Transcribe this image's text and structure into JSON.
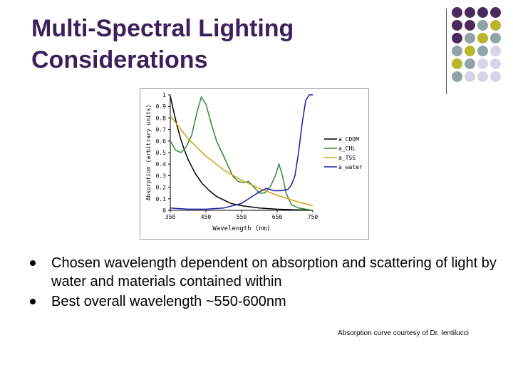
{
  "slide": {
    "title_lines": [
      "Multi-Spectral Lighting",
      "Considerations"
    ],
    "bullets": [
      "Chosen wavelength dependent on absorption and scattering of light by water and materials contained within",
      "Best overall wavelength ~550-600nm"
    ],
    "credit": "Absorption curve courtesy of Dr. Ientilucci",
    "decor_dot_colors": [
      "#4a2a5c",
      "#8fa3a8",
      "#b8b52e",
      "#d6d4e6"
    ]
  },
  "chart_data": {
    "type": "line",
    "xlabel": "Wavelength (nm)",
    "ylabel": "Absorption (arbitrary units)",
    "xlim": [
      350,
      750
    ],
    "ylim": [
      0,
      1
    ],
    "x_ticks": [
      "350",
      "450",
      "550",
      "650",
      "750"
    ],
    "y_ticks": [
      "0",
      "0.1",
      "0.2",
      "0.3",
      "0.4",
      "0.5",
      "0.6",
      "0.7",
      "0.8",
      "0.9",
      "1"
    ],
    "legend_position": "right",
    "series": [
      {
        "name": "a_CDOM",
        "color": "#000000",
        "x": [
          350,
          360,
          370,
          380,
          390,
          400,
          420,
          440,
          460,
          480,
          500,
          520,
          550,
          600,
          650,
          700,
          750
        ],
        "y": [
          0.99,
          0.85,
          0.72,
          0.61,
          0.52,
          0.44,
          0.32,
          0.23,
          0.17,
          0.12,
          0.09,
          0.06,
          0.04,
          0.02,
          0.01,
          0.005,
          0.0
        ]
      },
      {
        "name": "a_CHL",
        "color": "#2e8b2e",
        "x": [
          350,
          365,
          380,
          395,
          410,
          425,
          437,
          450,
          465,
          480,
          495,
          510,
          525,
          540,
          555,
          570,
          585,
          600,
          615,
          630,
          645,
          655,
          665,
          675,
          690,
          710,
          730,
          750
        ],
        "y": [
          0.6,
          0.52,
          0.5,
          0.55,
          0.65,
          0.85,
          0.98,
          0.92,
          0.75,
          0.6,
          0.5,
          0.4,
          0.3,
          0.25,
          0.24,
          0.25,
          0.2,
          0.15,
          0.15,
          0.2,
          0.3,
          0.4,
          0.3,
          0.15,
          0.05,
          0.02,
          0.01,
          0.0
        ]
      },
      {
        "name": "a_TSS",
        "color": "#d4a017",
        "x": [
          350,
          400,
          450,
          500,
          550,
          600,
          650,
          700,
          750
        ],
        "y": [
          0.82,
          0.62,
          0.47,
          0.35,
          0.26,
          0.19,
          0.13,
          0.08,
          0.04
        ]
      },
      {
        "name": "a_water",
        "color": "#1a1aa8",
        "x": [
          350,
          400,
          450,
          500,
          550,
          570,
          590,
          600,
          620,
          640,
          660,
          680,
          690,
          700,
          710,
          720,
          730,
          740,
          750
        ],
        "y": [
          0.02,
          0.01,
          0.01,
          0.02,
          0.06,
          0.1,
          0.14,
          0.16,
          0.19,
          0.17,
          0.17,
          0.18,
          0.22,
          0.3,
          0.5,
          0.75,
          0.95,
          1.0,
          1.0
        ]
      }
    ]
  }
}
